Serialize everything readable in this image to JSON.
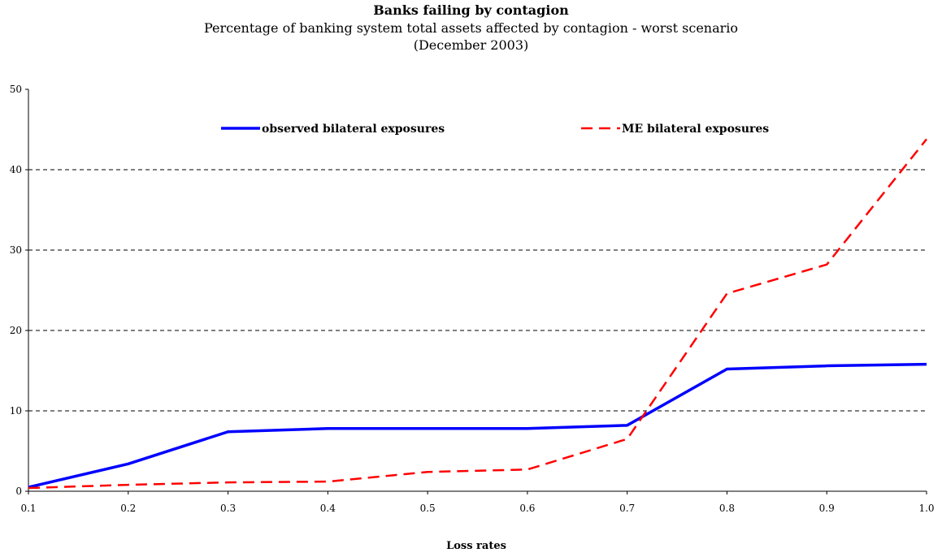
{
  "chart_data": {
    "type": "line",
    "title": "Banks failing by contagion",
    "subtitle": "Percentage of banking system total assets affected by contagion - worst scenario",
    "subtitle2": "(December 2003)",
    "xlabel": "Loss rates",
    "ylabel": "",
    "x": [
      0.1,
      0.2,
      0.3,
      0.4,
      0.5,
      0.6,
      0.7,
      0.8,
      0.9,
      1.0
    ],
    "x_tick_labels": [
      "0.1",
      "0.2",
      "0.3",
      "0.4",
      "0.5",
      "0.6",
      "0.7",
      "0.8",
      "0.9",
      "1.0"
    ],
    "ylim": [
      0,
      50
    ],
    "y_ticks": [
      0,
      10,
      20,
      30,
      40,
      50
    ],
    "y_tick_labels": [
      "0",
      "10",
      "20",
      "30",
      "40",
      "50"
    ],
    "grid": "horizontal dashed",
    "legend_placement": "top",
    "series": [
      {
        "name": "observed bilateral exposures",
        "color": "#0000ff",
        "style": "solid",
        "values": [
          0.5,
          3.4,
          7.4,
          7.8,
          7.8,
          7.8,
          8.2,
          15.2,
          15.6,
          15.8
        ]
      },
      {
        "name": "ME bilateral exposures",
        "color": "#ff0000",
        "style": "dashed",
        "values": [
          0.4,
          0.8,
          1.1,
          1.2,
          2.4,
          2.7,
          6.5,
          24.6,
          28.2,
          43.8
        ]
      }
    ]
  }
}
